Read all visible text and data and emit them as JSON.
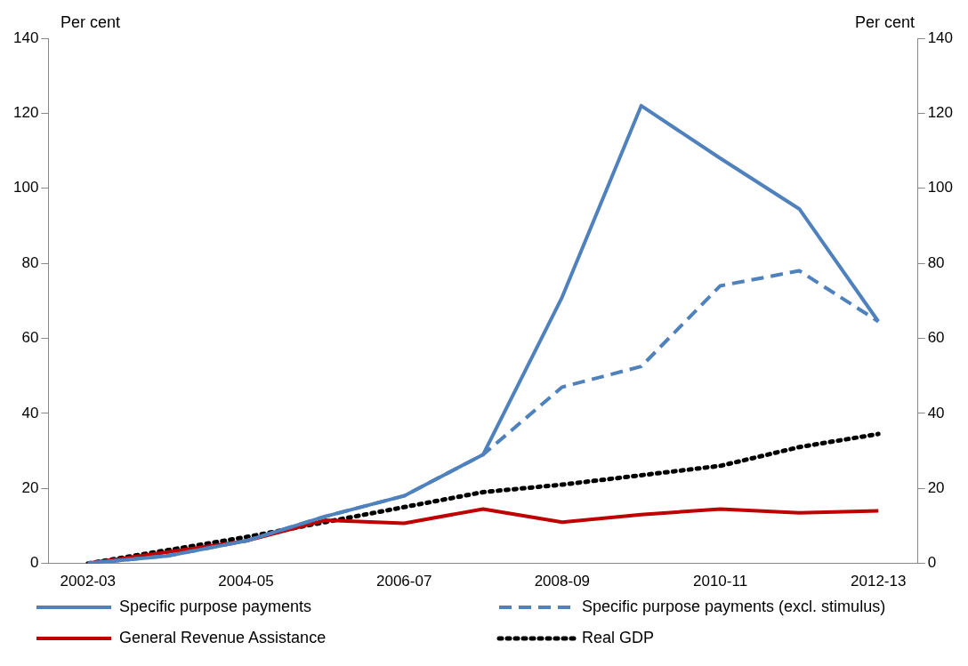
{
  "chart_data": {
    "type": "line",
    "ylabel": "Per cent",
    "y2label": "Per cent",
    "categories": [
      "2002-03",
      null,
      "2004-05",
      null,
      "2006-07",
      null,
      "2008-09",
      null,
      "2010-11",
      null,
      "2012-13"
    ],
    "series": [
      {
        "name": "Specific purpose payments",
        "color": "#4f81bd",
        "line_style": "solid",
        "values": [
          0,
          2,
          6,
          12.5,
          18,
          29,
          71,
          122,
          108,
          94.5,
          64.5
        ]
      },
      {
        "name": "Specific purpose payments (excl. stimulus)",
        "color": "#4f81bd",
        "line_style": "dashed",
        "values": [
          0,
          2,
          6,
          12.5,
          18,
          29,
          47,
          52.5,
          74,
          78,
          64.5
        ]
      },
      {
        "name": "General Revenue Assistance",
        "color": "#c00000",
        "line_style": "solid",
        "values": [
          0,
          3,
          6,
          11.5,
          10.7,
          14.5,
          11,
          13,
          14.5,
          13.5,
          14
        ]
      },
      {
        "name": "Real GDP",
        "color": "#000000",
        "line_style": "dotted",
        "values": [
          0,
          3.5,
          7,
          11,
          15,
          19,
          21,
          23.5,
          26,
          31,
          34.5
        ]
      }
    ],
    "ylim": [
      0,
      140
    ],
    "yticks": [
      0,
      20,
      40,
      60,
      80,
      100,
      120,
      140
    ],
    "y2lim": [
      0,
      140
    ],
    "y2ticks": [
      0,
      20,
      40,
      60,
      80,
      100,
      120,
      140
    ],
    "grid": false,
    "legend": "bottom",
    "marker": "none"
  }
}
